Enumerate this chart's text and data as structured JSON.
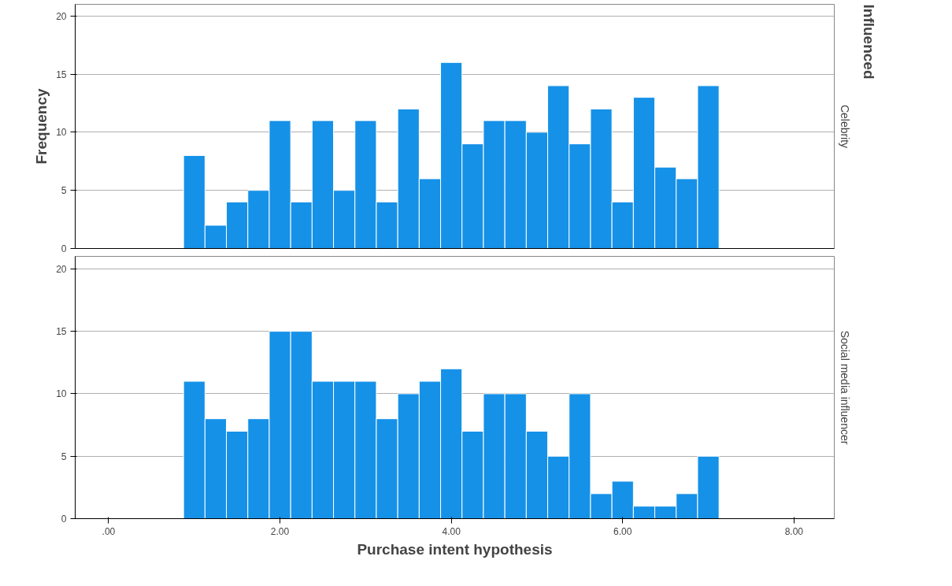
{
  "chart_data": [
    {
      "type": "histogram",
      "title": "Celebrity",
      "ylabel": "Frequency",
      "annotations": [
        "Influenced"
      ],
      "bins": [
        0.875,
        1.125,
        1.375,
        1.625,
        1.875,
        2.125,
        2.375,
        2.625,
        2.875,
        3.125,
        3.375,
        3.625,
        3.875,
        4.125,
        4.375,
        4.625,
        4.875,
        5.125,
        5.375,
        5.625,
        5.875,
        6.125,
        6.375,
        6.625,
        6.875,
        7.125
      ],
      "values": [
        8,
        2,
        4,
        5,
        11,
        4,
        11,
        5,
        11,
        4,
        12,
        6,
        16,
        9,
        11,
        11,
        10,
        14,
        9,
        12,
        4,
        13,
        7,
        6,
        14
      ],
      "color": "#1591e8",
      "xlim": [
        -0.39,
        8.47
      ],
      "ylim": [
        0,
        21
      ],
      "yticks": [
        0,
        5,
        10,
        15,
        20
      ],
      "grid": "y",
      "tick_labels": "y"
    },
    {
      "type": "histogram",
      "title": "Social media influencer",
      "xlabel": "Purchase intent hypothesis",
      "bins": [
        0.875,
        1.125,
        1.375,
        1.625,
        1.875,
        2.125,
        2.375,
        2.625,
        2.875,
        3.125,
        3.375,
        3.625,
        3.875,
        4.125,
        4.375,
        4.625,
        4.875,
        5.125,
        5.375,
        5.625,
        5.875,
        6.125,
        6.375,
        6.625,
        6.875,
        7.125
      ],
      "values": [
        11,
        8,
        7,
        8,
        15,
        15,
        11,
        11,
        11,
        8,
        10,
        11,
        12,
        7,
        10,
        10,
        7,
        5,
        10,
        2,
        3,
        1,
        1,
        2,
        5
      ],
      "color": "#1591e8",
      "xlim": [
        -0.39,
        8.47
      ],
      "xticks": [
        {
          "value": 0,
          "label": ".00"
        },
        {
          "value": 2,
          "label": "2.00"
        },
        {
          "value": 4,
          "label": "4.00"
        },
        {
          "value": 6,
          "label": "6.00"
        },
        {
          "value": 8,
          "label": "8.00"
        }
      ],
      "ylim": [
        0,
        21
      ],
      "yticks": [
        0,
        5,
        10,
        15,
        20
      ],
      "grid": "y"
    }
  ]
}
